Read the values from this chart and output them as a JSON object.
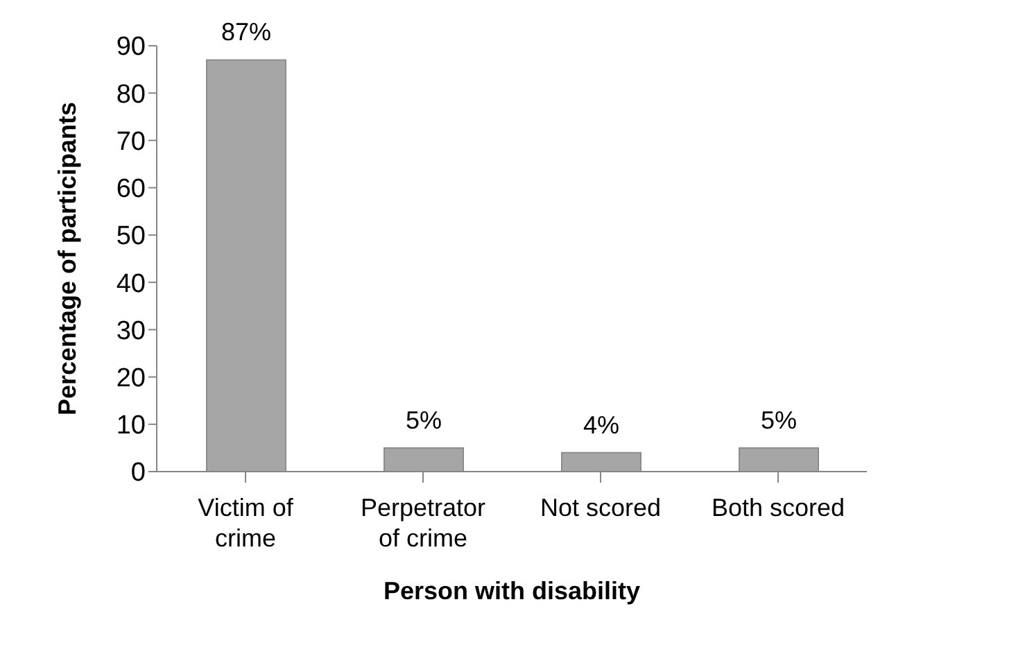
{
  "chart_data": {
    "type": "bar",
    "xlabel": "Person with disability",
    "ylabel": "Percentage of participants",
    "categories": [
      "Victim of crime",
      "Perpetrator of crime",
      "Not scored",
      "Both scored"
    ],
    "values": [
      87,
      5,
      4,
      5
    ],
    "value_labels": [
      "87%",
      "5%",
      "4%",
      "5%"
    ],
    "color": "#a6a6a6",
    "ylim": [
      0,
      90
    ],
    "yticks": [
      0,
      10,
      20,
      30,
      40,
      50,
      60,
      70,
      80,
      90
    ],
    "grid": false
  }
}
